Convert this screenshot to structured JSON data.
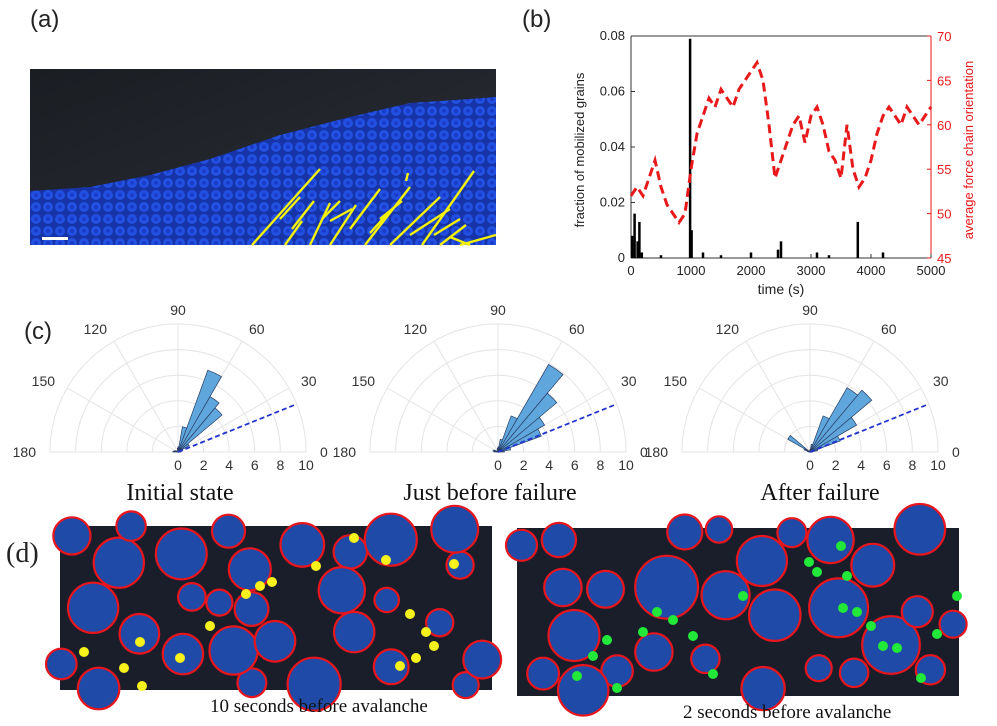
{
  "panels": {
    "a": {
      "label": "(a)"
    },
    "b": {
      "label": "(b)"
    },
    "c": {
      "label": "(c)"
    },
    "d": {
      "label": "(d)"
    }
  },
  "colors": {
    "photo_bg": "#1b1f26",
    "grains": "#1c3fc4",
    "chain": "#f5f20a",
    "mobilized": "#000000",
    "orientation": "#e8191a",
    "rose_fill": "#5ea6dc",
    "slope_line": "#2233cc",
    "contact_yellow": "#f7f21c",
    "contact_green": "#22e83a",
    "circle_red": "#e8161c"
  },
  "chart_data": [
    {
      "type": "line",
      "panel": "b",
      "xlabel": "time (s)",
      "ylabel": "fraction of mobilized grains",
      "y2label": "average force chain orientation",
      "xlim": [
        0,
        5000
      ],
      "ylim": [
        0,
        0.08
      ],
      "y2lim": [
        45,
        70
      ],
      "xticks": [
        "0",
        "1000",
        "2000",
        "3000",
        "4000",
        "5000"
      ],
      "yticks": [
        "0",
        "0.02",
        "0.04",
        "0.06",
        "0.08"
      ],
      "y2ticks": [
        "45",
        "50",
        "55",
        "60",
        "65",
        "70"
      ],
      "series": [
        {
          "name": "fraction of mobilized grains",
          "axis": "left",
          "style": "spikes",
          "x": [
            20,
            60,
            110,
            140,
            180,
            500,
            985,
            1010,
            1200,
            1500,
            2000,
            2450,
            2500,
            3100,
            3300,
            3780,
            4200
          ],
          "values": [
            0.008,
            0.016,
            0.006,
            0.013,
            0.002,
            0.001,
            0.079,
            0.01,
            0.002,
            0.001,
            0.002,
            0.003,
            0.006,
            0.002,
            0.001,
            0.013,
            0.002
          ]
        },
        {
          "name": "average force chain orientation",
          "axis": "right",
          "style": "dashed",
          "x": [
            0,
            100,
            200,
            300,
            400,
            500,
            600,
            700,
            800,
            900,
            1000,
            1100,
            1200,
            1300,
            1400,
            1500,
            1600,
            1700,
            1800,
            1900,
            2000,
            2100,
            2200,
            2300,
            2400,
            2500,
            2600,
            2700,
            2800,
            2900,
            3000,
            3100,
            3200,
            3300,
            3400,
            3500,
            3600,
            3700,
            3800,
            3900,
            4000,
            4100,
            4200,
            4300,
            4400,
            4500,
            4600,
            4700,
            4800,
            4900,
            5000
          ],
          "values": [
            52,
            53,
            52,
            54,
            56,
            53,
            51,
            50,
            49,
            50,
            55,
            59,
            61,
            63,
            62,
            64,
            63,
            62,
            64,
            65,
            66,
            67,
            65,
            60,
            54,
            56,
            58,
            60,
            61,
            58,
            61,
            62,
            60,
            57,
            56,
            54,
            60,
            55,
            53,
            54,
            56,
            59,
            61,
            62,
            61,
            60,
            62,
            61,
            60,
            61,
            62
          ]
        }
      ]
    },
    {
      "type": "polar-histogram",
      "panel": "c1",
      "title": "Initial state",
      "angle_ticks": [
        "0",
        "30",
        "60",
        "90",
        "120",
        "150",
        "180"
      ],
      "radial_ticks": [
        "0",
        "2",
        "4",
        "6",
        "8",
        "10"
      ],
      "rlim": [
        0,
        10
      ],
      "slope_angle_deg": 22,
      "bins_deg": [
        0,
        10,
        20,
        30,
        40,
        50,
        60,
        70,
        80,
        90,
        100,
        110,
        120,
        130,
        140,
        150,
        160,
        170
      ],
      "values": [
        0.2,
        0.3,
        0.4,
        1.0,
        4.5,
        5.0,
        6.8,
        2.0,
        0.4,
        0.3,
        0.1,
        0.1,
        0.1,
        0.1,
        0.1,
        0.2,
        0.3,
        0.4
      ]
    },
    {
      "type": "polar-histogram",
      "panel": "c2",
      "title": "Just before failure",
      "angle_ticks": [
        "0",
        "30",
        "60",
        "90",
        "120",
        "150",
        "180"
      ],
      "radial_ticks": [
        "0",
        "2",
        "4",
        "6",
        "8",
        "10"
      ],
      "rlim": [
        0,
        10
      ],
      "slope_angle_deg": 22,
      "bins_deg": [
        0,
        10,
        20,
        30,
        40,
        50,
        60,
        70,
        80,
        90,
        100,
        110,
        120,
        130,
        140,
        150,
        160,
        170
      ],
      "values": [
        0.5,
        1.0,
        3.6,
        4.2,
        6.0,
        7.9,
        3.0,
        1.0,
        0.4,
        0.3,
        0.2,
        0.1,
        0.1,
        0.1,
        0.1,
        0.3,
        0.4,
        0.3
      ]
    },
    {
      "type": "polar-histogram",
      "panel": "c3",
      "title": "After failure",
      "angle_ticks": [
        "0",
        "30",
        "60",
        "90",
        "120",
        "150",
        "180"
      ],
      "radial_ticks": [
        "0",
        "2",
        "4",
        "6",
        "8",
        "10"
      ],
      "rlim": [
        0,
        10
      ],
      "slope_angle_deg": 22,
      "bins_deg": [
        0,
        10,
        20,
        30,
        40,
        50,
        60,
        70,
        80,
        90,
        100,
        110,
        120,
        130,
        140,
        150,
        160,
        170
      ],
      "values": [
        0.2,
        0.6,
        2.5,
        4.2,
        6.3,
        5.8,
        3.0,
        0.6,
        0.2,
        0.1,
        0.1,
        0.1,
        0.1,
        0.1,
        2.0,
        0.5,
        0.2,
        0.1
      ]
    }
  ],
  "captions": {
    "d_left": "10 seconds before avalanche",
    "d_right": "2 seconds before avalanche"
  }
}
